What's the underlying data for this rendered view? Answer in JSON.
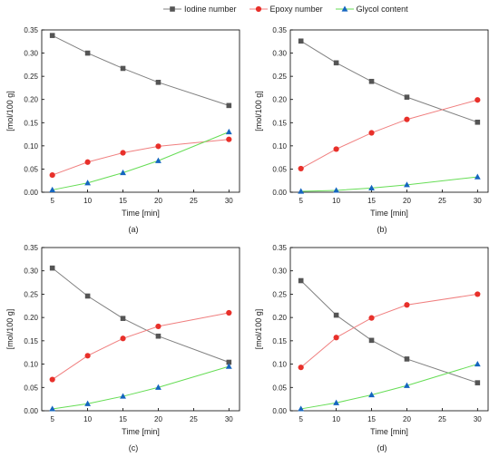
{
  "legend": {
    "placement": "top-center",
    "items": [
      {
        "name": "Iodine number",
        "color": "#555555",
        "marker": "square"
      },
      {
        "name": "Epoxy number",
        "color": "#e8302a",
        "marker": "circle"
      },
      {
        "name": "Glycol content",
        "color": "#1565c0",
        "marker": "triangle"
      }
    ]
  },
  "chart_data": [
    {
      "type": "line",
      "panel": "(a)",
      "xlabel": "Time [min]",
      "ylabel": "[mol/100 g]",
      "xlim": [
        3.5,
        31.5
      ],
      "ylim": [
        0,
        0.35
      ],
      "xticks": [
        5,
        10,
        15,
        20,
        25,
        30
      ],
      "yticks": [
        0.0,
        0.05,
        0.1,
        0.15,
        0.2,
        0.25,
        0.3,
        0.35
      ],
      "x": [
        5,
        10,
        15,
        20,
        30
      ],
      "series": [
        {
          "name": "Iodine number",
          "values": [
            0.338,
            0.3,
            0.267,
            0.237,
            0.187
          ]
        },
        {
          "name": "Epoxy number",
          "values": [
            0.037,
            0.065,
            0.085,
            0.099,
            0.114
          ]
        },
        {
          "name": "Glycol content",
          "values": [
            0.005,
            0.02,
            0.042,
            0.068,
            0.13
          ]
        }
      ]
    },
    {
      "type": "line",
      "panel": "(b)",
      "xlabel": "Time [min]",
      "ylabel": "[mol/100 g]",
      "xlim": [
        3.5,
        31.5
      ],
      "ylim": [
        0,
        0.35
      ],
      "xticks": [
        5,
        10,
        15,
        20,
        25,
        30
      ],
      "yticks": [
        0.0,
        0.05,
        0.1,
        0.15,
        0.2,
        0.25,
        0.3,
        0.35
      ],
      "x": [
        5,
        10,
        15,
        20,
        30
      ],
      "series": [
        {
          "name": "Iodine number",
          "values": [
            0.326,
            0.279,
            0.239,
            0.205,
            0.151
          ]
        },
        {
          "name": "Epoxy number",
          "values": [
            0.051,
            0.093,
            0.128,
            0.157,
            0.199
          ]
        },
        {
          "name": "Glycol content",
          "values": [
            0.002,
            0.004,
            0.009,
            0.016,
            0.033
          ]
        }
      ]
    },
    {
      "type": "line",
      "panel": "(c)",
      "xlabel": "Time [min]",
      "ylabel": "[mol/100 g]",
      "xlim": [
        3.5,
        31.5
      ],
      "ylim": [
        0,
        0.35
      ],
      "xticks": [
        5,
        10,
        15,
        20,
        25,
        30
      ],
      "yticks": [
        0.0,
        0.05,
        0.1,
        0.15,
        0.2,
        0.25,
        0.3,
        0.35
      ],
      "x": [
        5,
        10,
        15,
        20,
        30
      ],
      "series": [
        {
          "name": "Iodine number",
          "values": [
            0.306,
            0.246,
            0.198,
            0.16,
            0.104
          ]
        },
        {
          "name": "Epoxy number",
          "values": [
            0.067,
            0.118,
            0.155,
            0.181,
            0.21
          ]
        },
        {
          "name": "Glycol content",
          "values": [
            0.004,
            0.015,
            0.031,
            0.05,
            0.095
          ]
        }
      ]
    },
    {
      "type": "line",
      "panel": "(d)",
      "xlabel": "Time [min]",
      "ylabel": "[mol/100 g]",
      "xlim": [
        3.5,
        31.5
      ],
      "ylim": [
        0,
        0.35
      ],
      "xticks": [
        5,
        10,
        15,
        20,
        25,
        30
      ],
      "yticks": [
        0.0,
        0.05,
        0.1,
        0.15,
        0.2,
        0.25,
        0.3,
        0.35
      ],
      "x": [
        5,
        10,
        15,
        20,
        30
      ],
      "series": [
        {
          "name": "Iodine number",
          "values": [
            0.279,
            0.205,
            0.151,
            0.111,
            0.06
          ]
        },
        {
          "name": "Epoxy number",
          "values": [
            0.093,
            0.157,
            0.199,
            0.227,
            0.25
          ]
        },
        {
          "name": "Glycol content",
          "values": [
            0.004,
            0.017,
            0.034,
            0.054,
            0.1
          ]
        }
      ]
    }
  ]
}
